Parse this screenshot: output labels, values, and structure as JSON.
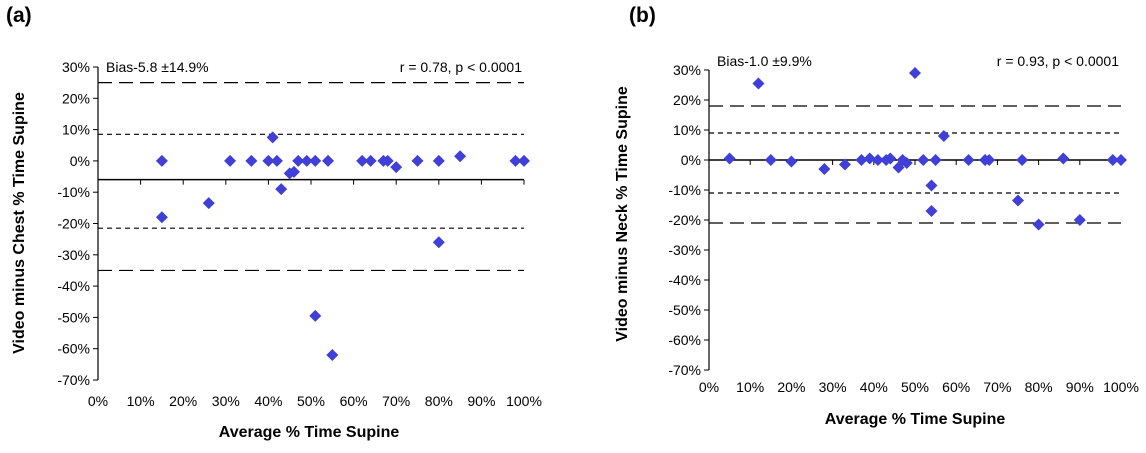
{
  "chart_data": [
    {
      "type": "scatter",
      "panel_label": "(a)",
      "title": "",
      "xlabel": "Average % Time Supine",
      "ylabel": "Video minus Chest % Time Supine",
      "xlim": [
        0,
        100
      ],
      "ylim": [
        -70,
        30
      ],
      "x_ticks": [
        "0%",
        "10%",
        "20%",
        "30%",
        "40%",
        "50%",
        "60%",
        "70%",
        "80%",
        "90%",
        "100%"
      ],
      "y_ticks": [
        "30%",
        "20%",
        "10%",
        "0%",
        "-10%",
        "-20%",
        "-30%",
        "-40%",
        "-50%",
        "-60%",
        "-70%"
      ],
      "x_tick_values": [
        0,
        10,
        20,
        30,
        40,
        50,
        60,
        70,
        80,
        90,
        100
      ],
      "y_tick_values": [
        30,
        20,
        10,
        0,
        -10,
        -20,
        -30,
        -40,
        -50,
        -60,
        -70
      ],
      "x_axis_at": -6,
      "bias_text": "Bias-5.8 ±14.9%",
      "stats_text": "r = 0.78, p < 0.0001",
      "reference_lines": [
        {
          "name": "upper-95-limit",
          "y": 25,
          "style": "long-dash"
        },
        {
          "name": "upper-1sd",
          "y": 8.5,
          "style": "short-dash"
        },
        {
          "name": "lower-1sd",
          "y": -21.5,
          "style": "short-dash"
        },
        {
          "name": "lower-95-limit",
          "y": -35,
          "style": "long-dash"
        }
      ],
      "marker_color": "#4040d8",
      "points": [
        {
          "x": 15,
          "y": 0
        },
        {
          "x": 15,
          "y": -18
        },
        {
          "x": 26,
          "y": -13.5
        },
        {
          "x": 31,
          "y": 0
        },
        {
          "x": 36,
          "y": 0
        },
        {
          "x": 40,
          "y": 0
        },
        {
          "x": 41,
          "y": 7.5
        },
        {
          "x": 42,
          "y": 0
        },
        {
          "x": 43,
          "y": -9
        },
        {
          "x": 45,
          "y": -4
        },
        {
          "x": 46,
          "y": -3.5
        },
        {
          "x": 47,
          "y": 0
        },
        {
          "x": 49,
          "y": 0
        },
        {
          "x": 51,
          "y": 0
        },
        {
          "x": 51,
          "y": -49.5
        },
        {
          "x": 54,
          "y": 0
        },
        {
          "x": 55,
          "y": -62
        },
        {
          "x": 62,
          "y": 0
        },
        {
          "x": 64,
          "y": 0
        },
        {
          "x": 67,
          "y": 0
        },
        {
          "x": 68,
          "y": 0
        },
        {
          "x": 70,
          "y": -2
        },
        {
          "x": 75,
          "y": 0
        },
        {
          "x": 80,
          "y": 0
        },
        {
          "x": 80,
          "y": -26
        },
        {
          "x": 85,
          "y": 1.5
        },
        {
          "x": 98,
          "y": 0
        },
        {
          "x": 100,
          "y": 0
        }
      ]
    },
    {
      "type": "scatter",
      "panel_label": "(b)",
      "title": "",
      "xlabel": "Average % Time Supine",
      "ylabel": "Video minus Neck % Time Supine",
      "xlim": [
        0,
        100
      ],
      "ylim": [
        -70,
        30
      ],
      "x_ticks": [
        "0%",
        "10%",
        "20%",
        "30%",
        "40%",
        "50%",
        "60%",
        "70%",
        "80%",
        "90%",
        "100%"
      ],
      "y_ticks": [
        "30%",
        "20%",
        "10%",
        "0%",
        "-10%",
        "-20%",
        "-30%",
        "-40%",
        "-50%",
        "-60%",
        "-70%"
      ],
      "x_tick_values": [
        0,
        10,
        20,
        30,
        40,
        50,
        60,
        70,
        80,
        90,
        100
      ],
      "y_tick_values": [
        30,
        20,
        10,
        0,
        -10,
        -20,
        -30,
        -40,
        -50,
        -60,
        -70
      ],
      "x_axis_at": 0,
      "bias_text": "Bias-1.0 ±9.9%",
      "stats_text": "r = 0.93, p < 0.0001",
      "reference_lines": [
        {
          "name": "upper-95-limit",
          "y": 18,
          "style": "long-dash"
        },
        {
          "name": "upper-1sd",
          "y": 9,
          "style": "short-dash"
        },
        {
          "name": "lower-1sd",
          "y": -11,
          "style": "short-dash"
        },
        {
          "name": "lower-95-limit",
          "y": -21,
          "style": "long-dash"
        }
      ],
      "marker_color": "#4040d8",
      "points": [
        {
          "x": 5,
          "y": 0.5
        },
        {
          "x": 12,
          "y": 25.5
        },
        {
          "x": 15,
          "y": 0
        },
        {
          "x": 20,
          "y": -0.5
        },
        {
          "x": 28,
          "y": -3
        },
        {
          "x": 33,
          "y": -1.5
        },
        {
          "x": 37,
          "y": 0
        },
        {
          "x": 39,
          "y": 0.5
        },
        {
          "x": 41,
          "y": 0
        },
        {
          "x": 43,
          "y": 0
        },
        {
          "x": 44,
          "y": 0.5
        },
        {
          "x": 46,
          "y": -2.5
        },
        {
          "x": 47,
          "y": 0
        },
        {
          "x": 48,
          "y": -1
        },
        {
          "x": 50,
          "y": 29
        },
        {
          "x": 52,
          "y": 0
        },
        {
          "x": 54,
          "y": -8.5
        },
        {
          "x": 54,
          "y": -17
        },
        {
          "x": 55,
          "y": 0
        },
        {
          "x": 57,
          "y": 8
        },
        {
          "x": 63,
          "y": 0
        },
        {
          "x": 67,
          "y": 0
        },
        {
          "x": 68,
          "y": 0
        },
        {
          "x": 75,
          "y": -13.5
        },
        {
          "x": 76,
          "y": 0
        },
        {
          "x": 80,
          "y": -21.5
        },
        {
          "x": 86,
          "y": 0.5
        },
        {
          "x": 90,
          "y": -20
        },
        {
          "x": 98,
          "y": 0
        },
        {
          "x": 100,
          "y": 0
        }
      ]
    }
  ]
}
